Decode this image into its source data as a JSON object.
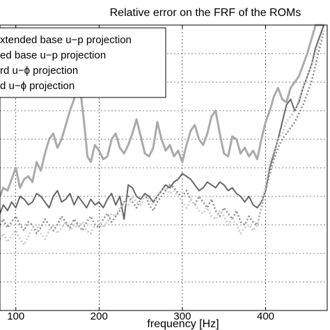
{
  "chart_data": {
    "type": "line",
    "title": "Relative error on the FRF of the ROMs",
    "xlabel": "frequency [Hz]",
    "ylabel": "",
    "xlim": [
      81,
      474
    ],
    "ylim": [
      0,
      1
    ],
    "xticks": [
      100,
      200,
      300,
      400
    ],
    "grid": true,
    "legend_placement": "top-left",
    "series": [
      {
        "name": "xtended base u−p projection",
        "color": "#aaaaaa",
        "dash": "",
        "width": 3,
        "x": [
          81,
          85,
          90,
          95,
          100,
          105,
          110,
          115,
          120,
          125,
          130,
          135,
          140,
          145,
          150,
          155,
          160,
          165,
          170,
          175,
          178,
          182,
          186,
          190,
          195,
          200,
          205,
          210,
          215,
          220,
          225,
          230,
          235,
          240,
          245,
          250,
          255,
          260,
          265,
          270,
          275,
          280,
          285,
          290,
          295,
          300,
          305,
          310,
          315,
          320,
          325,
          330,
          335,
          340,
          345,
          350,
          355,
          360,
          365,
          370,
          375,
          380,
          385,
          390,
          395,
          400,
          405,
          410,
          415,
          420,
          425,
          430,
          435,
          440,
          445,
          450,
          455,
          460,
          465,
          470
        ],
        "y": [
          0.4,
          0.43,
          0.42,
          0.46,
          0.5,
          0.43,
          0.46,
          0.47,
          0.45,
          0.52,
          0.49,
          0.55,
          0.6,
          0.62,
          0.57,
          0.6,
          0.65,
          0.7,
          0.74,
          0.8,
          0.76,
          0.66,
          0.54,
          0.52,
          0.58,
          0.56,
          0.53,
          0.54,
          0.6,
          0.62,
          0.57,
          0.55,
          0.58,
          0.62,
          0.67,
          0.61,
          0.55,
          0.54,
          0.57,
          0.66,
          0.6,
          0.56,
          0.58,
          0.54,
          0.56,
          0.52,
          0.58,
          0.63,
          0.65,
          0.6,
          0.58,
          0.62,
          0.68,
          0.7,
          0.62,
          0.55,
          0.54,
          0.61,
          0.6,
          0.55,
          0.57,
          0.54,
          0.56,
          0.53,
          0.6,
          0.66,
          0.7,
          0.75,
          0.78,
          0.74,
          0.73,
          0.78,
          0.8,
          0.82,
          0.86,
          0.9,
          0.95,
          1.0,
          1.0,
          1.0
        ]
      },
      {
        "name": "ed base u−p projection",
        "color": "#666666",
        "dash": "",
        "width": 2,
        "x": [
          81,
          85,
          90,
          95,
          100,
          105,
          110,
          115,
          120,
          125,
          130,
          135,
          140,
          145,
          150,
          155,
          160,
          165,
          170,
          175,
          180,
          185,
          190,
          195,
          200,
          205,
          210,
          215,
          220,
          225,
          230,
          235,
          240,
          245,
          250,
          255,
          260,
          265,
          270,
          275,
          280,
          285,
          290,
          295,
          300,
          305,
          310,
          315,
          320,
          325,
          330,
          335,
          340,
          345,
          350,
          355,
          360,
          365,
          370,
          375,
          380,
          385,
          390,
          395,
          400,
          405,
          410,
          415,
          420,
          425,
          430,
          435,
          440,
          445,
          450,
          455,
          460,
          465,
          470
        ],
        "y": [
          0.34,
          0.37,
          0.35,
          0.38,
          0.36,
          0.4,
          0.39,
          0.37,
          0.38,
          0.41,
          0.4,
          0.38,
          0.36,
          0.4,
          0.42,
          0.38,
          0.39,
          0.41,
          0.37,
          0.4,
          0.38,
          0.36,
          0.39,
          0.37,
          0.38,
          0.36,
          0.39,
          0.41,
          0.37,
          0.4,
          0.32,
          0.44,
          0.43,
          0.4,
          0.39,
          0.41,
          0.4,
          0.38,
          0.4,
          0.42,
          0.44,
          0.43,
          0.45,
          0.46,
          0.48,
          0.47,
          0.46,
          0.44,
          0.42,
          0.43,
          0.45,
          0.44,
          0.43,
          0.45,
          0.44,
          0.42,
          0.43,
          0.41,
          0.4,
          0.38,
          0.4,
          0.37,
          0.36,
          0.38,
          0.42,
          0.5,
          0.55,
          0.6,
          0.66,
          0.72,
          0.74,
          0.7,
          0.73,
          0.78,
          0.82,
          0.86,
          0.92,
          0.96,
          1.0
        ]
      },
      {
        "name": "rd u−ϕ projection",
        "color": "#888888",
        "dash": "2,3",
        "width": 2.5,
        "x": [
          81,
          85,
          90,
          95,
          100,
          105,
          110,
          115,
          120,
          125,
          130,
          135,
          140,
          145,
          150,
          155,
          160,
          165,
          170,
          175,
          180,
          185,
          190,
          195,
          200,
          205,
          210,
          215,
          220,
          225,
          230,
          235,
          240,
          245,
          250,
          255,
          260,
          265,
          270,
          275,
          280,
          285,
          290,
          295,
          300,
          305,
          310,
          315,
          320,
          325,
          330,
          335,
          340,
          345,
          350,
          355,
          360,
          365,
          370,
          375,
          380,
          385,
          390,
          395,
          400,
          405,
          410,
          415,
          420,
          425,
          430,
          435,
          440,
          445,
          450,
          455,
          460,
          465,
          470
        ],
        "y": [
          0.3,
          0.32,
          0.29,
          0.31,
          0.33,
          0.3,
          0.28,
          0.31,
          0.3,
          0.27,
          0.29,
          0.32,
          0.3,
          0.28,
          0.3,
          0.33,
          0.31,
          0.29,
          0.32,
          0.3,
          0.28,
          0.31,
          0.33,
          0.3,
          0.29,
          0.32,
          0.34,
          0.31,
          0.33,
          0.35,
          0.38,
          0.4,
          0.38,
          0.36,
          0.39,
          0.41,
          0.37,
          0.35,
          0.38,
          0.4,
          0.42,
          0.44,
          0.43,
          0.41,
          0.4,
          0.42,
          0.39,
          0.37,
          0.4,
          0.38,
          0.36,
          0.39,
          0.35,
          0.33,
          0.36,
          0.34,
          0.32,
          0.35,
          0.31,
          0.3,
          0.33,
          0.31,
          0.3,
          0.36,
          0.42,
          0.48,
          0.53,
          0.57,
          0.6,
          0.62,
          0.64,
          0.66,
          0.69,
          0.72,
          0.76,
          0.8,
          0.86,
          0.92,
          0.98
        ]
      },
      {
        "name": "d u−ϕ projection",
        "color": "#cccccc",
        "dash": "2,3",
        "width": 3,
        "x": [
          81,
          85,
          90,
          95,
          100,
          105,
          110,
          115,
          120,
          125,
          130,
          135,
          140,
          145,
          150,
          155,
          160,
          165,
          170,
          175,
          180,
          185,
          190,
          195,
          200,
          205,
          210,
          215,
          220,
          225,
          230,
          235,
          240,
          245,
          250,
          255,
          260,
          265,
          270,
          275,
          280,
          285,
          290,
          295,
          300,
          305,
          310,
          315,
          320,
          325,
          330,
          335,
          340,
          345,
          350,
          355,
          360,
          365,
          370,
          375,
          380,
          385,
          390,
          395,
          400,
          405,
          410,
          415,
          420,
          425,
          430,
          435,
          440,
          445,
          450,
          455,
          460,
          465,
          470
        ],
        "y": [
          0.25,
          0.27,
          0.24,
          0.26,
          0.28,
          0.25,
          0.23,
          0.26,
          0.29,
          0.3,
          0.27,
          0.25,
          0.28,
          0.3,
          0.27,
          0.29,
          0.31,
          0.28,
          0.3,
          0.29,
          0.31,
          0.28,
          0.27,
          0.3,
          0.32,
          0.29,
          0.31,
          0.34,
          0.33,
          0.36,
          0.38,
          0.37,
          0.4,
          0.38,
          0.37,
          0.4,
          0.39,
          0.37,
          0.4,
          0.42,
          0.43,
          0.41,
          0.42,
          0.4,
          0.38,
          0.36,
          0.39,
          0.37,
          0.35,
          0.34,
          0.36,
          0.33,
          0.32,
          0.35,
          0.33,
          0.3,
          0.32,
          0.3,
          0.27,
          0.29,
          0.3,
          0.28,
          0.3,
          0.36,
          0.44,
          0.52,
          0.56,
          0.6,
          0.62,
          0.66,
          0.68,
          0.7,
          0.74,
          0.78,
          0.82,
          0.86,
          0.9,
          0.94,
          0.98
        ]
      }
    ]
  }
}
